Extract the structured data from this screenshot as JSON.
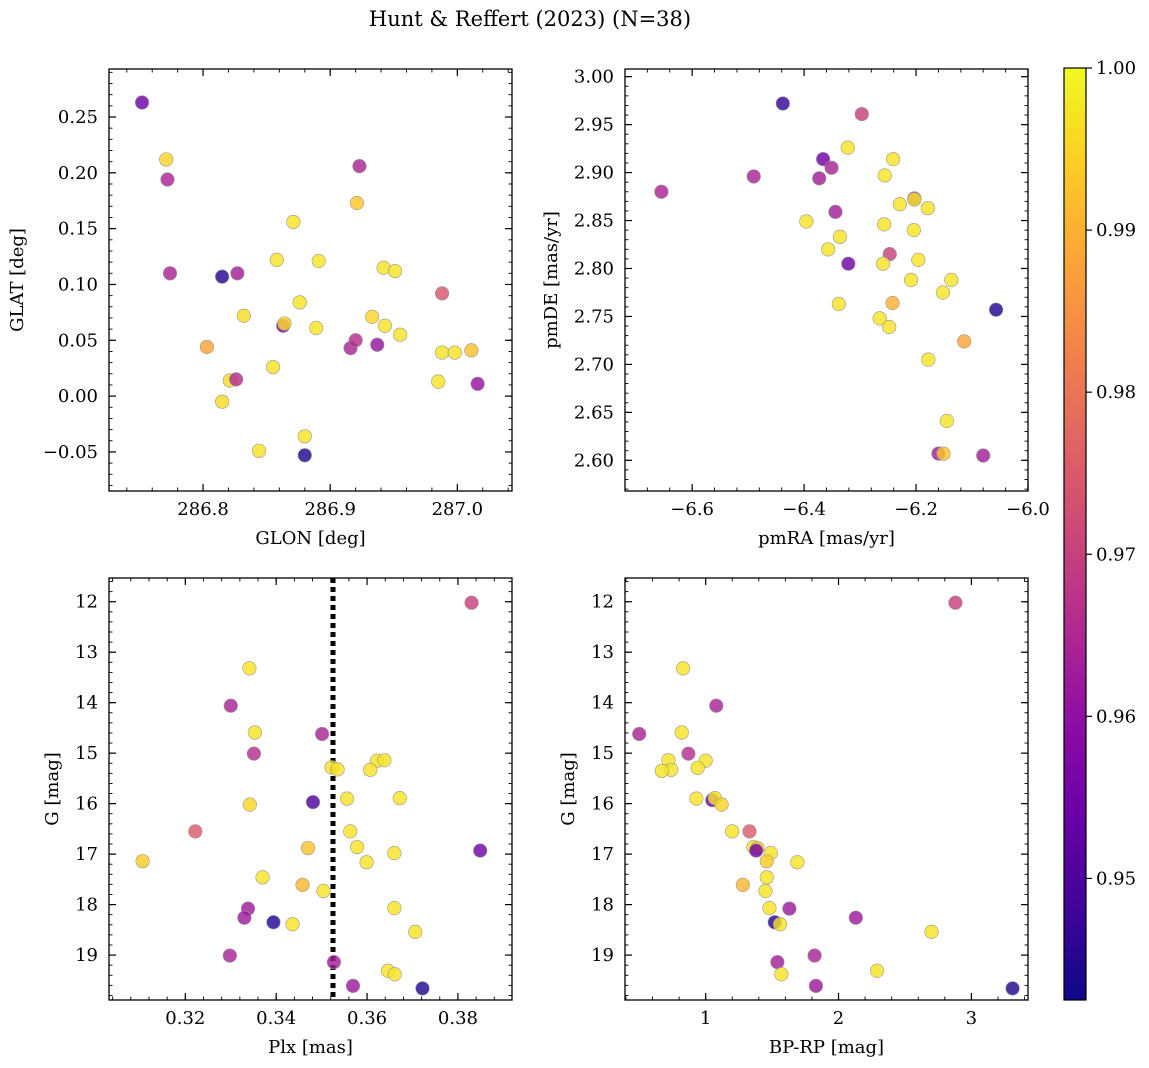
{
  "figure": {
    "title": "Hunt & Reffert (2023) (N=38)"
  },
  "colorbar": {
    "vmin": 0.9425,
    "vmax": 1.0,
    "ticks": [
      0.95,
      0.96,
      0.97,
      0.98,
      0.99,
      1.0
    ],
    "tick_labels": [
      "0.95",
      "0.96",
      "0.97",
      "0.98",
      "0.99",
      "1.00"
    ],
    "colormap": "plasma"
  },
  "chart_data": [
    {
      "type": "scatter",
      "id": "glon_glat",
      "xlabel": "GLON [deg]",
      "ylabel": "GLAT [deg]",
      "xlim": [
        286.726,
        287.043
      ],
      "ylim": [
        -0.085,
        0.293
      ],
      "xticks": [
        286.8,
        286.9,
        287.0
      ],
      "xtick_labels": [
        "286.8",
        "286.9",
        "287.0"
      ],
      "yticks": [
        -0.05,
        0.0,
        0.05,
        0.1,
        0.15,
        0.2,
        0.25
      ],
      "ytick_labels": [
        "−0.05",
        "0.00",
        "0.05",
        "0.10",
        "0.15",
        "0.20",
        "0.25"
      ],
      "points": [
        {
          "x": 286.752,
          "y": 0.263,
          "c": 0.955
        },
        {
          "x": 286.771,
          "y": 0.212,
          "c": 0.995
        },
        {
          "x": 286.772,
          "y": 0.194,
          "c": 0.964
        },
        {
          "x": 286.774,
          "y": 0.11,
          "c": 0.964
        },
        {
          "x": 286.803,
          "y": 0.044,
          "c": 0.988
        },
        {
          "x": 286.815,
          "y": 0.107,
          "c": 0.945
        },
        {
          "x": 286.827,
          "y": 0.11,
          "c": 0.963
        },
        {
          "x": 286.815,
          "y": -0.005,
          "c": 0.996
        },
        {
          "x": 286.821,
          "y": 0.014,
          "c": 0.996
        },
        {
          "x": 286.826,
          "y": 0.015,
          "c": 0.966
        },
        {
          "x": 286.832,
          "y": 0.072,
          "c": 0.996
        },
        {
          "x": 286.844,
          "y": -0.049,
          "c": 0.997
        },
        {
          "x": 286.855,
          "y": 0.026,
          "c": 0.997
        },
        {
          "x": 286.858,
          "y": 0.122,
          "c": 0.997
        },
        {
          "x": 286.863,
          "y": 0.063,
          "c": 0.958
        },
        {
          "x": 286.864,
          "y": 0.065,
          "c": 0.996
        },
        {
          "x": 286.871,
          "y": 0.156,
          "c": 0.997
        },
        {
          "x": 286.876,
          "y": 0.084,
          "c": 0.997
        },
        {
          "x": 286.88,
          "y": -0.036,
          "c": 0.997
        },
        {
          "x": 286.88,
          "y": -0.053,
          "c": 0.945
        },
        {
          "x": 286.889,
          "y": 0.061,
          "c": 0.997
        },
        {
          "x": 286.891,
          "y": 0.121,
          "c": 0.997
        },
        {
          "x": 286.916,
          "y": 0.043,
          "c": 0.964
        },
        {
          "x": 286.92,
          "y": 0.05,
          "c": 0.966
        },
        {
          "x": 286.921,
          "y": 0.173,
          "c": 0.993
        },
        {
          "x": 286.923,
          "y": 0.206,
          "c": 0.964
        },
        {
          "x": 286.933,
          "y": 0.071,
          "c": 0.995
        },
        {
          "x": 286.937,
          "y": 0.046,
          "c": 0.961
        },
        {
          "x": 286.942,
          "y": 0.115,
          "c": 0.997
        },
        {
          "x": 286.943,
          "y": 0.063,
          "c": 0.997
        },
        {
          "x": 286.951,
          "y": 0.112,
          "c": 0.997
        },
        {
          "x": 286.955,
          "y": 0.055,
          "c": 0.997
        },
        {
          "x": 286.985,
          "y": 0.013,
          "c": 0.997
        },
        {
          "x": 286.988,
          "y": 0.092,
          "c": 0.974
        },
        {
          "x": 286.988,
          "y": 0.039,
          "c": 0.997
        },
        {
          "x": 286.998,
          "y": 0.039,
          "c": 0.997
        },
        {
          "x": 287.011,
          "y": 0.041,
          "c": 0.992
        },
        {
          "x": 287.016,
          "y": 0.011,
          "c": 0.961
        }
      ]
    },
    {
      "type": "scatter",
      "id": "pmra_pmde",
      "xlabel": "pmRA [mas/yr]",
      "ylabel": "pmDE [mas/yr]",
      "xlim": [
        -6.72,
        -6.0
      ],
      "ylim": [
        2.568,
        3.008
      ],
      "xticks": [
        -6.6,
        -6.4,
        -6.2,
        -6.0
      ],
      "xtick_labels": [
        "−6.6",
        "−6.4",
        "−6.2",
        "−6.0"
      ],
      "yticks": [
        2.6,
        2.65,
        2.7,
        2.75,
        2.8,
        2.85,
        2.9,
        2.95,
        3.0
      ],
      "ytick_labels": [
        "2.60",
        "2.65",
        "2.70",
        "2.75",
        "2.80",
        "2.85",
        "2.90",
        "2.95",
        "3.00"
      ],
      "points": [
        {
          "x": -6.438,
          "y": 2.972,
          "c": 0.947
        },
        {
          "x": -6.297,
          "y": 2.961,
          "c": 0.97
        },
        {
          "x": -6.322,
          "y": 2.926,
          "c": 0.997
        },
        {
          "x": -6.366,
          "y": 2.914,
          "c": 0.955
        },
        {
          "x": -6.241,
          "y": 2.914,
          "c": 0.997
        },
        {
          "x": -6.351,
          "y": 2.905,
          "c": 0.964
        },
        {
          "x": -6.49,
          "y": 2.896,
          "c": 0.964
        },
        {
          "x": -6.256,
          "y": 2.897,
          "c": 0.997
        },
        {
          "x": -6.373,
          "y": 2.894,
          "c": 0.963
        },
        {
          "x": -6.655,
          "y": 2.88,
          "c": 0.964
        },
        {
          "x": -6.203,
          "y": 2.873,
          "c": 0.962
        },
        {
          "x": -6.203,
          "y": 2.872,
          "c": 0.997
        },
        {
          "x": -6.229,
          "y": 2.867,
          "c": 0.997
        },
        {
          "x": -6.179,
          "y": 2.863,
          "c": 0.997
        },
        {
          "x": -6.344,
          "y": 2.859,
          "c": 0.963
        },
        {
          "x": -6.396,
          "y": 2.849,
          "c": 0.997
        },
        {
          "x": -6.257,
          "y": 2.846,
          "c": 0.997
        },
        {
          "x": -6.204,
          "y": 2.84,
          "c": 0.997
        },
        {
          "x": -6.336,
          "y": 2.833,
          "c": 0.997
        },
        {
          "x": -6.357,
          "y": 2.82,
          "c": 0.997
        },
        {
          "x": -6.247,
          "y": 2.815,
          "c": 0.97
        },
        {
          "x": -6.196,
          "y": 2.809,
          "c": 0.997
        },
        {
          "x": -6.321,
          "y": 2.805,
          "c": 0.955
        },
        {
          "x": -6.259,
          "y": 2.805,
          "c": 0.997
        },
        {
          "x": -6.209,
          "y": 2.788,
          "c": 0.997
        },
        {
          "x": -6.137,
          "y": 2.788,
          "c": 0.997
        },
        {
          "x": -6.152,
          "y": 2.775,
          "c": 0.997
        },
        {
          "x": -6.242,
          "y": 2.764,
          "c": 0.99
        },
        {
          "x": -6.338,
          "y": 2.763,
          "c": 0.997
        },
        {
          "x": -6.057,
          "y": 2.757,
          "c": 0.945
        },
        {
          "x": -6.265,
          "y": 2.748,
          "c": 0.997
        },
        {
          "x": -6.248,
          "y": 2.739,
          "c": 0.997
        },
        {
          "x": -6.114,
          "y": 2.724,
          "c": 0.988
        },
        {
          "x": -6.178,
          "y": 2.705,
          "c": 0.997
        },
        {
          "x": -6.145,
          "y": 2.641,
          "c": 0.997
        },
        {
          "x": -6.16,
          "y": 2.607,
          "c": 0.962
        },
        {
          "x": -6.151,
          "y": 2.607,
          "c": 0.993
        },
        {
          "x": -6.08,
          "y": 2.605,
          "c": 0.963
        }
      ]
    },
    {
      "type": "scatter",
      "id": "plx_g",
      "xlabel": "Plx [mas]",
      "ylabel": "G [mag]",
      "xlim": [
        0.3032,
        0.3919
      ],
      "ylim": [
        19.89,
        11.53
      ],
      "y_inverted": true,
      "xticks": [
        0.32,
        0.34,
        0.36,
        0.38
      ],
      "xtick_labels": [
        "0.32",
        "0.34",
        "0.36",
        "0.38"
      ],
      "yticks": [
        12,
        13,
        14,
        15,
        16,
        17,
        18,
        19
      ],
      "ytick_labels": [
        "12",
        "13",
        "14",
        "15",
        "16",
        "17",
        "18",
        "19"
      ],
      "reference_line": {
        "x": 0.3525,
        "style": "dotted",
        "color": "#000000"
      },
      "points": [
        {
          "x": 0.383,
          "y": 12.02,
          "c": 0.97
        },
        {
          "x": 0.3341,
          "y": 13.32,
          "c": 0.997
        },
        {
          "x": 0.33,
          "y": 14.06,
          "c": 0.964
        },
        {
          "x": 0.3353,
          "y": 14.59,
          "c": 0.997
        },
        {
          "x": 0.3501,
          "y": 14.62,
          "c": 0.964
        },
        {
          "x": 0.3351,
          "y": 15.01,
          "c": 0.966
        },
        {
          "x": 0.3622,
          "y": 15.15,
          "c": 0.997
        },
        {
          "x": 0.3638,
          "y": 15.14,
          "c": 0.997
        },
        {
          "x": 0.3522,
          "y": 15.28,
          "c": 0.997
        },
        {
          "x": 0.3535,
          "y": 15.32,
          "c": 0.997
        },
        {
          "x": 0.3607,
          "y": 15.33,
          "c": 0.997
        },
        {
          "x": 0.3556,
          "y": 15.9,
          "c": 0.997
        },
        {
          "x": 0.3672,
          "y": 15.89,
          "c": 0.997
        },
        {
          "x": 0.3481,
          "y": 15.97,
          "c": 0.95
        },
        {
          "x": 0.3342,
          "y": 16.02,
          "c": 0.995
        },
        {
          "x": 0.3222,
          "y": 16.55,
          "c": 0.975
        },
        {
          "x": 0.3563,
          "y": 16.55,
          "c": 0.997
        },
        {
          "x": 0.3578,
          "y": 16.86,
          "c": 0.997
        },
        {
          "x": 0.347,
          "y": 16.88,
          "c": 0.993
        },
        {
          "x": 0.3849,
          "y": 16.93,
          "c": 0.955
        },
        {
          "x": 0.366,
          "y": 16.98,
          "c": 0.997
        },
        {
          "x": 0.3106,
          "y": 17.14,
          "c": 0.994
        },
        {
          "x": 0.3599,
          "y": 17.16,
          "c": 0.997
        },
        {
          "x": 0.337,
          "y": 17.46,
          "c": 0.997
        },
        {
          "x": 0.3458,
          "y": 17.61,
          "c": 0.991
        },
        {
          "x": 0.3504,
          "y": 17.73,
          "c": 0.997
        },
        {
          "x": 0.366,
          "y": 18.07,
          "c": 0.997
        },
        {
          "x": 0.3338,
          "y": 18.08,
          "c": 0.962
        },
        {
          "x": 0.333,
          "y": 18.26,
          "c": 0.962
        },
        {
          "x": 0.3394,
          "y": 18.35,
          "c": 0.945
        },
        {
          "x": 0.3436,
          "y": 18.39,
          "c": 0.997
        },
        {
          "x": 0.3706,
          "y": 18.54,
          "c": 0.997
        },
        {
          "x": 0.3298,
          "y": 19.01,
          "c": 0.964
        },
        {
          "x": 0.3527,
          "y": 19.14,
          "c": 0.963
        },
        {
          "x": 0.3646,
          "y": 19.31,
          "c": 0.997
        },
        {
          "x": 0.3661,
          "y": 19.38,
          "c": 0.997
        },
        {
          "x": 0.3569,
          "y": 19.61,
          "c": 0.962
        },
        {
          "x": 0.3722,
          "y": 19.66,
          "c": 0.945
        }
      ]
    },
    {
      "type": "scatter",
      "id": "bprp_g",
      "xlabel": "BP-RP [mag]",
      "ylabel": "G [mag]",
      "xlim": [
        0.393,
        3.426
      ],
      "ylim": [
        19.89,
        11.53
      ],
      "y_inverted": true,
      "xticks": [
        1,
        2,
        3
      ],
      "xtick_labels": [
        "1",
        "2",
        "3"
      ],
      "yticks": [
        12,
        13,
        14,
        15,
        16,
        17,
        18,
        19
      ],
      "ytick_labels": [
        "12",
        "13",
        "14",
        "15",
        "16",
        "17",
        "18",
        "19"
      ],
      "points": [
        {
          "x": 2.88,
          "y": 12.02,
          "c": 0.97
        },
        {
          "x": 0.83,
          "y": 13.32,
          "c": 0.997
        },
        {
          "x": 1.08,
          "y": 14.06,
          "c": 0.964
        },
        {
          "x": 0.82,
          "y": 14.59,
          "c": 0.997
        },
        {
          "x": 0.5,
          "y": 14.62,
          "c": 0.964
        },
        {
          "x": 0.87,
          "y": 15.01,
          "c": 0.966
        },
        {
          "x": 1.0,
          "y": 15.15,
          "c": 0.997
        },
        {
          "x": 0.72,
          "y": 15.14,
          "c": 0.997
        },
        {
          "x": 0.94,
          "y": 15.29,
          "c": 0.997
        },
        {
          "x": 0.74,
          "y": 15.33,
          "c": 0.997
        },
        {
          "x": 0.67,
          "y": 15.35,
          "c": 0.997
        },
        {
          "x": 0.93,
          "y": 15.9,
          "c": 0.997
        },
        {
          "x": 1.05,
          "y": 15.93,
          "c": 0.955
        },
        {
          "x": 1.07,
          "y": 15.89,
          "c": 0.997
        },
        {
          "x": 1.12,
          "y": 16.02,
          "c": 0.995
        },
        {
          "x": 1.2,
          "y": 16.55,
          "c": 0.997
        },
        {
          "x": 1.33,
          "y": 16.55,
          "c": 0.975
        },
        {
          "x": 1.36,
          "y": 16.86,
          "c": 0.997
        },
        {
          "x": 1.39,
          "y": 16.88,
          "c": 0.993
        },
        {
          "x": 1.38,
          "y": 16.93,
          "c": 0.955
        },
        {
          "x": 1.49,
          "y": 16.98,
          "c": 0.997
        },
        {
          "x": 1.46,
          "y": 17.14,
          "c": 0.994
        },
        {
          "x": 1.69,
          "y": 17.16,
          "c": 0.997
        },
        {
          "x": 1.46,
          "y": 17.46,
          "c": 0.997
        },
        {
          "x": 1.28,
          "y": 17.61,
          "c": 0.991
        },
        {
          "x": 1.45,
          "y": 17.73,
          "c": 0.997
        },
        {
          "x": 1.48,
          "y": 18.07,
          "c": 0.997
        },
        {
          "x": 1.63,
          "y": 18.08,
          "c": 0.962
        },
        {
          "x": 2.13,
          "y": 18.26,
          "c": 0.962
        },
        {
          "x": 1.52,
          "y": 18.35,
          "c": 0.945
        },
        {
          "x": 1.56,
          "y": 18.39,
          "c": 0.997
        },
        {
          "x": 2.7,
          "y": 18.54,
          "c": 0.997
        },
        {
          "x": 1.82,
          "y": 19.01,
          "c": 0.964
        },
        {
          "x": 1.54,
          "y": 19.14,
          "c": 0.963
        },
        {
          "x": 2.29,
          "y": 19.31,
          "c": 0.997
        },
        {
          "x": 1.57,
          "y": 19.38,
          "c": 0.997
        },
        {
          "x": 1.83,
          "y": 19.61,
          "c": 0.962
        },
        {
          "x": 3.31,
          "y": 19.66,
          "c": 0.945
        }
      ]
    }
  ]
}
